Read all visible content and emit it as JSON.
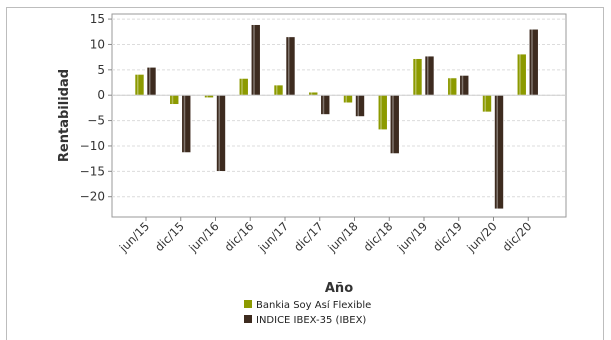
{
  "chart_data": {
    "type": "bar",
    "xlabel": "Año",
    "ylabel": "Rentabilidad",
    "ylim": [
      -24,
      16
    ],
    "yticks": [
      15,
      10,
      5,
      0,
      -5,
      -10,
      -15,
      -20
    ],
    "grid": true,
    "legend_position": "bottom",
    "categories": [
      "jun/15",
      "dic/15",
      "jun/16",
      "dic/16",
      "jun/17",
      "dic/17",
      "jun/18",
      "dic/18",
      "jun/19",
      "dic/19",
      "jun/20",
      "dic/20"
    ],
    "series": [
      {
        "name": "Bankia Soy Así Flexible",
        "color": "#8c9a00",
        "values": [
          4.1,
          -1.8,
          -0.5,
          3.3,
          2.0,
          0.6,
          -1.5,
          -6.8,
          7.2,
          3.4,
          -3.3,
          8.1
        ]
      },
      {
        "name": "INDICE IBEX-35 (IBEX)",
        "color": "#3d2b1f",
        "values": [
          5.5,
          -11.3,
          -15.0,
          13.9,
          11.5,
          -3.8,
          -4.2,
          -11.5,
          7.7,
          3.9,
          -22.4,
          13.0
        ]
      }
    ]
  }
}
